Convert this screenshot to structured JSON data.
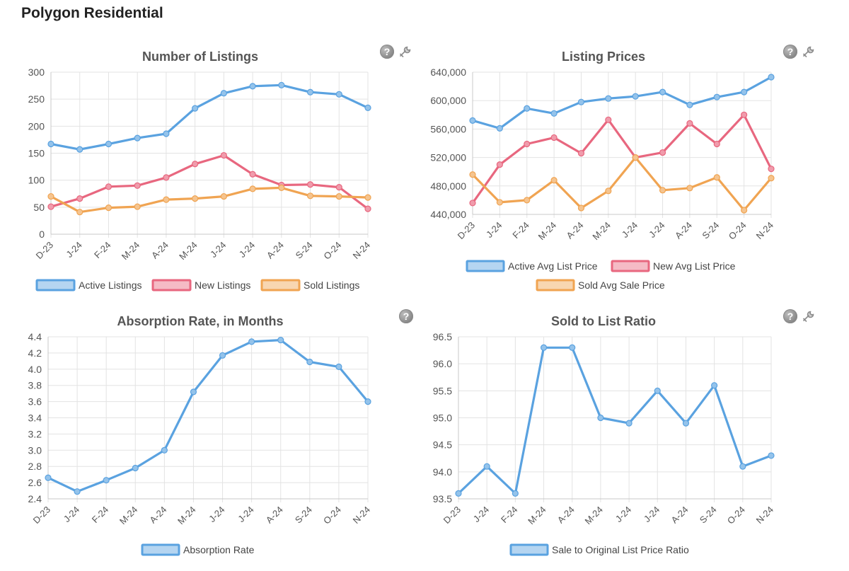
{
  "page": {
    "title": "Polygon Residential"
  },
  "icons": {
    "help": "help-icon",
    "tools": "wrench-icon",
    "help_glyph": "?"
  },
  "colors": {
    "blue": "#5aa2e0",
    "pink": "#e8677f",
    "orange": "#f0a452",
    "grid": "#e3e3e3",
    "axis": "#c8c8c8"
  },
  "chart_data": [
    {
      "id": "listings",
      "type": "line",
      "title": "Number of Listings",
      "categories": [
        "D-23",
        "J-24",
        "F-24",
        "M-24",
        "A-24",
        "M-24",
        "J-24",
        "J-24",
        "A-24",
        "S-24",
        "O-24",
        "N-24"
      ],
      "series": [
        {
          "name": "Active Listings",
          "color": "#5aa2e0",
          "values": [
            167,
            157,
            167,
            178,
            186,
            233,
            261,
            274,
            276,
            263,
            259,
            234
          ]
        },
        {
          "name": "New Listings",
          "color": "#e8677f",
          "values": [
            51,
            66,
            88,
            90,
            105,
            130,
            146,
            111,
            91,
            92,
            87,
            47
          ]
        },
        {
          "name": "Sold Listings",
          "color": "#f0a452",
          "values": [
            70,
            41,
            49,
            51,
            64,
            66,
            70,
            84,
            86,
            71,
            70,
            68
          ]
        }
      ],
      "yticks": [
        "0",
        "50",
        "100",
        "150",
        "200",
        "250",
        "300"
      ],
      "ylim": [
        0,
        300
      ],
      "grid": true,
      "legend_position": "bottom",
      "controls": [
        "help",
        "tools"
      ]
    },
    {
      "id": "prices",
      "type": "line",
      "title": "Listing Prices",
      "categories": [
        "D-23",
        "J-24",
        "F-24",
        "M-24",
        "A-24",
        "M-24",
        "J-24",
        "J-24",
        "A-24",
        "S-24",
        "O-24",
        "N-24"
      ],
      "series": [
        {
          "name": "Active Avg List Price",
          "color": "#5aa2e0",
          "values": [
            572000,
            561000,
            589000,
            582000,
            598000,
            603000,
            606000,
            612000,
            594000,
            605000,
            612000,
            633000
          ]
        },
        {
          "name": "New Avg List Price",
          "color": "#e8677f",
          "values": [
            456000,
            510000,
            539000,
            548000,
            526000,
            573000,
            520000,
            527000,
            568000,
            539000,
            580000,
            504000
          ]
        },
        {
          "name": "Sold Avg Sale Price",
          "color": "#f0a452",
          "values": [
            496000,
            457000,
            460000,
            488000,
            449000,
            473000,
            520000,
            474000,
            477000,
            492000,
            446000,
            491000
          ]
        }
      ],
      "yticks": [
        "440,000",
        "480,000",
        "520,000",
        "560,000",
        "600,000",
        "640,000"
      ],
      "ylim": [
        440000,
        640000
      ],
      "grid": true,
      "legend_position": "bottom",
      "controls": [
        "help",
        "tools"
      ]
    },
    {
      "id": "absorption",
      "type": "line",
      "title": "Absorption Rate, in Months",
      "categories": [
        "D-23",
        "J-24",
        "F-24",
        "M-24",
        "A-24",
        "M-24",
        "J-24",
        "J-24",
        "A-24",
        "S-24",
        "O-24",
        "N-24"
      ],
      "series": [
        {
          "name": "Absorption Rate",
          "color": "#5aa2e0",
          "values": [
            2.66,
            2.49,
            2.63,
            2.78,
            3.0,
            3.72,
            4.17,
            4.34,
            4.36,
            4.09,
            4.03,
            3.6
          ]
        }
      ],
      "yticks": [
        "2.4",
        "2.6",
        "2.8",
        "3.0",
        "3.2",
        "3.4",
        "3.6",
        "3.8",
        "4.0",
        "4.2",
        "4.4"
      ],
      "ylim": [
        2.4,
        4.4
      ],
      "grid": true,
      "legend_position": "bottom",
      "controls": [
        "help"
      ]
    },
    {
      "id": "ratio",
      "type": "line",
      "title": "Sold to List Ratio",
      "categories": [
        "D-23",
        "J-24",
        "F-24",
        "M-24",
        "A-24",
        "M-24",
        "J-24",
        "J-24",
        "A-24",
        "S-24",
        "O-24",
        "N-24"
      ],
      "series": [
        {
          "name": "Sale to Original List Price Ratio",
          "color": "#5aa2e0",
          "values": [
            93.6,
            94.1,
            93.6,
            96.3,
            96.3,
            95.0,
            94.9,
            95.5,
            94.9,
            95.6,
            94.1,
            94.3
          ]
        }
      ],
      "yticks": [
        "93.5",
        "94.0",
        "94.5",
        "95.0",
        "95.5",
        "96.0",
        "96.5"
      ],
      "ylim": [
        93.5,
        96.5
      ],
      "grid": true,
      "legend_position": "bottom",
      "controls": [
        "help",
        "tools"
      ]
    }
  ]
}
